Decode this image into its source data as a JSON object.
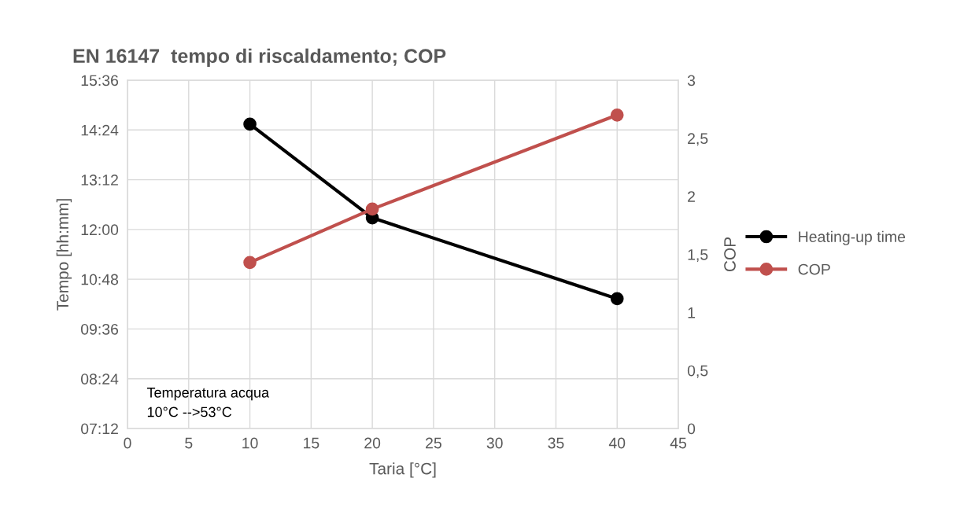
{
  "chart_data": {
    "type": "line",
    "title": "EN 16147  tempo di riscaldamento; COP",
    "xlabel": "Taria [°C]",
    "ylabel": "Tempo [hh:mm]",
    "y2label": "COP",
    "x": [
      10,
      20,
      40
    ],
    "series": [
      {
        "name": "Heating-up time",
        "color": "#000000",
        "values": [
          14.54,
          12.28,
          10.33
        ]
      },
      {
        "name": "COP",
        "color": "#c0504d",
        "values": [
          1.43,
          1.89,
          2.7
        ],
        "axis": "y2"
      }
    ],
    "xlim": [
      0,
      45
    ],
    "xticks": [
      0,
      5,
      10,
      15,
      20,
      25,
      30,
      35,
      40,
      45
    ],
    "ylim": [
      7.2,
      15.6
    ],
    "yticks": [
      {
        "value": 7.2,
        "label": "07:12"
      },
      {
        "value": 8.4,
        "label": "08:24"
      },
      {
        "value": 9.6,
        "label": "09:36"
      },
      {
        "value": 10.8,
        "label": "10:48"
      },
      {
        "value": 12.0,
        "label": "12:00"
      },
      {
        "value": 13.2,
        "label": "13:12"
      },
      {
        "value": 14.4,
        "label": "14:24"
      },
      {
        "value": 15.6,
        "label": "15:36"
      }
    ],
    "y2lim": [
      0,
      3
    ],
    "y2ticks": [
      0,
      {
        "value": 0.5,
        "label": "0,5"
      },
      1,
      {
        "value": 1.5,
        "label": "1,5"
      },
      2,
      {
        "value": 2.5,
        "label": "2,5"
      },
      3
    ],
    "annotations": [
      "Temperatura acqua\n10°C -->53°C"
    ],
    "grid": true,
    "legend": "right",
    "marker": "circle",
    "line_style": "solid"
  }
}
